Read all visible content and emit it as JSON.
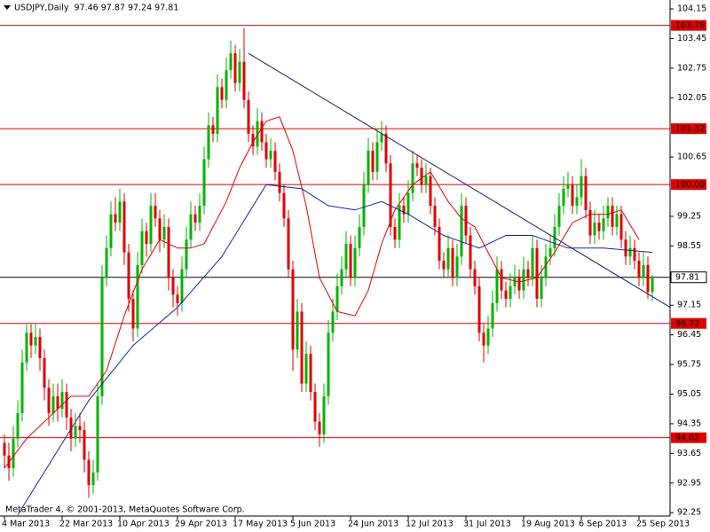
{
  "chart_data": {
    "type": "candlestick",
    "header": "USDJPY,Daily  97.46 97.87 97.24 97.81",
    "footer": "MetaTrader 4, © 2001-2013, MetaQuotes Software Corp.",
    "up_color": "#00b400",
    "down_color": "#e00000",
    "xlim": [
      -1,
      150
    ],
    "ylim": [
      92.17,
      104.36
    ],
    "xticks": [
      {
        "value": 0,
        "label": "4 Mar 2013"
      },
      {
        "value": 13,
        "label": "22 Mar 2013"
      },
      {
        "value": 26,
        "label": "10 Apr 2013"
      },
      {
        "value": 39,
        "label": "29 Apr 2013"
      },
      {
        "value": 52,
        "label": "17 May 2013"
      },
      {
        "value": 65,
        "label": "5 Jun 2013"
      },
      {
        "value": 78,
        "label": "24 Jun 2013"
      },
      {
        "value": 91,
        "label": "12 Jul 2013"
      },
      {
        "value": 104,
        "label": "31 Jul 2013"
      },
      {
        "value": 117,
        "label": "19 Aug 2013"
      },
      {
        "value": 130,
        "label": "6 Sep 2013"
      },
      {
        "value": 143,
        "label": "25 Sep 2013"
      }
    ],
    "yticks": [
      104.15,
      103.45,
      102.75,
      102.05,
      100.65,
      99.25,
      98.55,
      97.15,
      96.45,
      95.75,
      95.05,
      94.35,
      93.65,
      92.95,
      92.25
    ],
    "levels": {
      "color": "#e00000",
      "values": [
        103.76,
        101.32,
        {
          "value": 100,
          "label": "100.00"
        },
        96.72,
        94.02
      ]
    },
    "current_price": 97.81,
    "trendline": {
      "color": "#1a1a6e",
      "x": [
        55,
        150
      ],
      "values": [
        103.1,
        97.1
      ]
    },
    "ma": [
      {
        "color": "#e00000",
        "x": [
          0,
          5,
          10,
          15,
          19,
          23,
          27,
          31,
          35,
          39,
          42,
          45,
          50,
          53,
          56,
          59,
          62,
          65,
          68,
          71,
          75,
          79,
          82,
          85,
          88,
          92,
          96,
          100,
          103,
          106,
          109,
          112,
          116,
          120,
          124,
          128,
          132,
          136,
          139,
          143
        ],
        "values": [
          93.3,
          94.0,
          94.5,
          95.0,
          95.0,
          95.6,
          96.9,
          98.0,
          98.7,
          98.5,
          98.5,
          98.6,
          99.6,
          100.4,
          101.0,
          101.5,
          101.6,
          100.8,
          99.5,
          97.8,
          97.0,
          96.9,
          97.5,
          98.6,
          99.4,
          100.0,
          100.3,
          99.6,
          99.2,
          99.0,
          98.4,
          97.8,
          97.7,
          97.8,
          98.4,
          99.1,
          99.3,
          99.3,
          99.4,
          98.7
        ]
      },
      {
        "color": "#1428a0",
        "x": [
          3,
          19,
          29,
          39,
          49,
          59,
          67,
          73,
          79,
          85,
          91,
          99,
          107,
          113,
          119,
          127,
          135,
          146
        ],
        "values": [
          92.2,
          94.9,
          96.2,
          97.1,
          98.3,
          100.0,
          99.9,
          99.5,
          99.4,
          99.6,
          99.3,
          98.8,
          98.5,
          98.8,
          98.8,
          98.5,
          98.5,
          98.4
        ]
      }
    ],
    "ohlc": [
      [
        93.9,
        94.1,
        93.3,
        93.6
      ],
      [
        93.6,
        93.9,
        93.0,
        93.3
      ],
      [
        93.3,
        94.3,
        93.1,
        94.0
      ],
      [
        94.0,
        94.9,
        93.8,
        94.6
      ],
      [
        94.6,
        96.1,
        94.4,
        95.8
      ],
      [
        95.8,
        96.7,
        95.6,
        96.5
      ],
      [
        96.5,
        96.7,
        95.9,
        96.2
      ],
      [
        96.2,
        96.7,
        96.0,
        96.4
      ],
      [
        96.4,
        96.6,
        95.6,
        95.9
      ],
      [
        95.9,
        96.1,
        94.9,
        95.2
      ],
      [
        95.2,
        95.4,
        94.3,
        94.6
      ],
      [
        94.6,
        95.3,
        94.4,
        95.0
      ],
      [
        95.0,
        95.3,
        94.4,
        94.7
      ],
      [
        94.7,
        95.4,
        94.5,
        95.1
      ],
      [
        95.1,
        95.3,
        94.2,
        94.5
      ],
      [
        94.5,
        94.7,
        93.7,
        94.0
      ],
      [
        94.0,
        94.6,
        93.8,
        94.3
      ],
      [
        94.3,
        94.6,
        93.9,
        94.2
      ],
      [
        94.2,
        94.4,
        93.2,
        93.5
      ],
      [
        93.5,
        93.7,
        92.6,
        92.9
      ],
      [
        92.9,
        93.5,
        92.7,
        93.2
      ],
      [
        93.2,
        95.3,
        93.0,
        95.0
      ],
      [
        95.0,
        98.1,
        94.8,
        97.8
      ],
      [
        97.8,
        98.8,
        97.6,
        98.5
      ],
      [
        98.5,
        99.6,
        98.3,
        99.3
      ],
      [
        99.3,
        99.7,
        98.9,
        99.1
      ],
      [
        99.1,
        99.9,
        98.9,
        99.6
      ],
      [
        99.6,
        99.8,
        98.1,
        98.4
      ],
      [
        98.4,
        98.6,
        97.0,
        97.3
      ],
      [
        97.3,
        97.5,
        96.3,
        96.6
      ],
      [
        96.6,
        98.4,
        96.4,
        98.1
      ],
      [
        98.1,
        99.2,
        97.9,
        98.9
      ],
      [
        98.9,
        99.1,
        98.3,
        98.6
      ],
      [
        98.6,
        99.8,
        98.4,
        99.5
      ],
      [
        99.5,
        99.8,
        99.0,
        99.2
      ],
      [
        99.2,
        99.4,
        98.4,
        98.7
      ],
      [
        98.7,
        99.3,
        98.5,
        99.0
      ],
      [
        99.0,
        99.2,
        97.5,
        97.8
      ],
      [
        97.8,
        98.0,
        97.1,
        97.4
      ],
      [
        97.4,
        97.6,
        96.9,
        97.2
      ],
      [
        97.2,
        98.3,
        97.0,
        98.0
      ],
      [
        98.0,
        99.0,
        97.8,
        98.7
      ],
      [
        98.7,
        99.6,
        98.5,
        99.3
      ],
      [
        99.3,
        99.5,
        98.9,
        99.1
      ],
      [
        99.1,
        99.8,
        98.9,
        99.5
      ],
      [
        99.5,
        100.9,
        99.3,
        100.6
      ],
      [
        100.6,
        101.7,
        100.4,
        101.4
      ],
      [
        101.4,
        101.6,
        101.0,
        101.2
      ],
      [
        101.2,
        102.6,
        101.0,
        102.3
      ],
      [
        102.3,
        102.5,
        101.8,
        102.0
      ],
      [
        102.0,
        103.0,
        101.8,
        102.7
      ],
      [
        102.7,
        103.4,
        102.5,
        103.1
      ],
      [
        103.1,
        103.3,
        102.2,
        102.4
      ],
      [
        102.4,
        103.2,
        102.2,
        102.9
      ],
      [
        102.9,
        103.7,
        101.8,
        102.0
      ],
      [
        102.0,
        102.2,
        101.0,
        101.2
      ],
      [
        101.2,
        101.4,
        100.7,
        100.9
      ],
      [
        100.9,
        101.8,
        100.7,
        101.5
      ],
      [
        101.5,
        101.7,
        100.8,
        101.0
      ],
      [
        101.0,
        101.2,
        100.4,
        100.6
      ],
      [
        100.6,
        101.1,
        100.4,
        100.8
      ],
      [
        100.8,
        101.0,
        100.1,
        100.3
      ],
      [
        100.3,
        100.5,
        99.6,
        99.8
      ],
      [
        99.8,
        100.0,
        99.0,
        99.2
      ],
      [
        99.2,
        99.4,
        97.8,
        98.0
      ],
      [
        98.0,
        98.2,
        95.6,
        96.1
      ],
      [
        96.1,
        97.3,
        95.9,
        97.0
      ],
      [
        97.0,
        97.2,
        95.1,
        95.3
      ],
      [
        95.3,
        96.3,
        95.1,
        96.0
      ],
      [
        96.0,
        96.2,
        94.9,
        95.1
      ],
      [
        95.1,
        95.3,
        94.2,
        94.4
      ],
      [
        94.4,
        94.6,
        93.8,
        94.1
      ],
      [
        94.1,
        95.3,
        93.9,
        95.0
      ],
      [
        95.0,
        96.8,
        94.8,
        96.5
      ],
      [
        96.5,
        97.3,
        96.3,
        97.0
      ],
      [
        97.0,
        97.9,
        96.8,
        97.6
      ],
      [
        97.6,
        98.3,
        97.4,
        98.0
      ],
      [
        98.0,
        98.9,
        97.8,
        98.6
      ],
      [
        98.6,
        98.8,
        97.6,
        97.8
      ],
      [
        97.8,
        98.8,
        97.6,
        98.5
      ],
      [
        98.5,
        99.3,
        98.3,
        99.0
      ],
      [
        99.0,
        100.3,
        98.8,
        100.0
      ],
      [
        100.0,
        101.1,
        99.8,
        100.8
      ],
      [
        100.8,
        101.0,
        100.1,
        100.3
      ],
      [
        100.3,
        101.3,
        100.1,
        101.0
      ],
      [
        101.0,
        101.5,
        100.8,
        101.2
      ],
      [
        101.2,
        101.4,
        100.3,
        100.5
      ],
      [
        100.5,
        100.7,
        98.8,
        99.0
      ],
      [
        99.0,
        99.2,
        98.5,
        98.7
      ],
      [
        98.7,
        99.8,
        98.5,
        99.5
      ],
      [
        99.5,
        99.7,
        99.1,
        99.3
      ],
      [
        99.3,
        100.1,
        99.1,
        99.8
      ],
      [
        99.8,
        100.8,
        99.6,
        100.5
      ],
      [
        100.5,
        100.7,
        100.2,
        100.4
      ],
      [
        100.4,
        100.6,
        99.8,
        100.0
      ],
      [
        100.0,
        100.5,
        99.8,
        100.2
      ],
      [
        100.2,
        100.4,
        99.3,
        99.5
      ],
      [
        99.5,
        99.7,
        98.8,
        99.0
      ],
      [
        99.0,
        99.2,
        98.0,
        98.2
      ],
      [
        98.2,
        98.4,
        97.8,
        98.0
      ],
      [
        98.0,
        98.8,
        97.8,
        98.5
      ],
      [
        98.5,
        98.7,
        97.6,
        97.8
      ],
      [
        97.8,
        98.6,
        97.6,
        98.3
      ],
      [
        98.3,
        99.8,
        98.1,
        99.5
      ],
      [
        99.5,
        99.7,
        98.6,
        98.8
      ],
      [
        98.8,
        99.0,
        97.8,
        98.0
      ],
      [
        98.0,
        98.2,
        97.4,
        97.6
      ],
      [
        97.6,
        97.8,
        96.3,
        96.5
      ],
      [
        96.5,
        96.7,
        95.8,
        96.2
      ],
      [
        96.2,
        96.9,
        96.0,
        96.6
      ],
      [
        96.6,
        97.5,
        96.4,
        97.2
      ],
      [
        97.2,
        98.3,
        97.0,
        98.0
      ],
      [
        98.0,
        98.2,
        97.3,
        97.5
      ],
      [
        97.5,
        97.7,
        97.1,
        97.3
      ],
      [
        97.3,
        97.9,
        97.1,
        97.6
      ],
      [
        97.6,
        98.1,
        97.4,
        97.8
      ],
      [
        97.8,
        98.0,
        97.3,
        97.5
      ],
      [
        97.5,
        98.3,
        97.3,
        98.0
      ],
      [
        98.0,
        98.2,
        97.6,
        97.8
      ],
      [
        97.8,
        98.8,
        97.6,
        98.5
      ],
      [
        98.5,
        98.7,
        97.1,
        97.3
      ],
      [
        97.3,
        98.1,
        97.1,
        97.8
      ],
      [
        97.8,
        98.6,
        97.6,
        98.3
      ],
      [
        98.3,
        98.8,
        98.1,
        98.5
      ],
      [
        98.5,
        99.3,
        98.3,
        99.0
      ],
      [
        99.0,
        99.8,
        98.8,
        99.5
      ],
      [
        99.5,
        100.2,
        99.3,
        99.9
      ],
      [
        99.9,
        100.3,
        99.7,
        100.0
      ],
      [
        100.0,
        100.2,
        99.3,
        99.5
      ],
      [
        99.5,
        100.0,
        99.3,
        99.7
      ],
      [
        99.7,
        100.6,
        99.5,
        100.2
      ],
      [
        100.2,
        100.4,
        99.2,
        99.4
      ],
      [
        99.4,
        99.6,
        98.6,
        98.8
      ],
      [
        98.8,
        99.4,
        98.6,
        99.1
      ],
      [
        99.1,
        99.3,
        98.7,
        98.9
      ],
      [
        98.9,
        99.5,
        98.7,
        99.2
      ],
      [
        99.2,
        99.7,
        99.0,
        99.5
      ],
      [
        99.5,
        99.7,
        98.8,
        99.0
      ],
      [
        99.0,
        99.5,
        98.8,
        99.3
      ],
      [
        99.3,
        99.5,
        98.5,
        98.7
      ],
      [
        98.7,
        98.9,
        98.1,
        98.3
      ],
      [
        98.3,
        98.8,
        98.1,
        98.5
      ],
      [
        98.5,
        98.7,
        98.0,
        98.2
      ],
      [
        98.2,
        98.4,
        97.6,
        97.8
      ],
      [
        97.8,
        98.4,
        97.6,
        98.1
      ],
      [
        98.1,
        98.3,
        97.3,
        97.46
      ],
      [
        97.46,
        97.87,
        97.24,
        97.81
      ]
    ]
  }
}
